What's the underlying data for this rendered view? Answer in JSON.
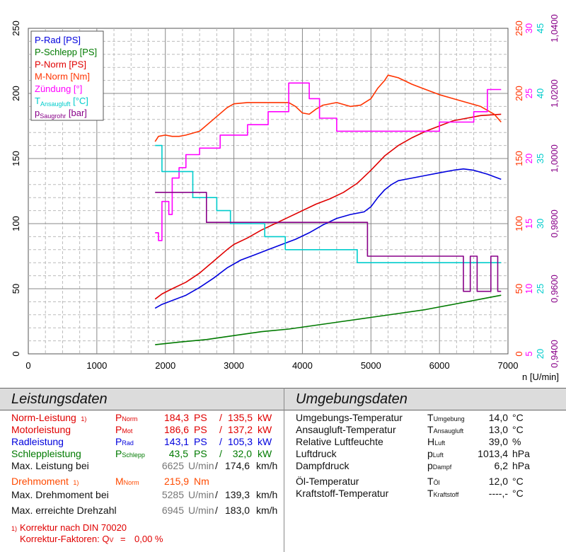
{
  "chart_data": {
    "type": "line",
    "xlabel": "n [U/min]",
    "xlim": [
      0,
      7000
    ],
    "x_ticks": [
      "0",
      "1000",
      "2000",
      "3000",
      "4000",
      "5000",
      "6000",
      "7000"
    ],
    "ylim": [
      0,
      250
    ],
    "y_ticks_left": [
      "0",
      "50",
      "100",
      "150",
      "200",
      "250"
    ],
    "grid": true,
    "legend_position": "top-left",
    "right_axes": [
      {
        "name": "M-Norm [Nm]",
        "color": "#ff3300",
        "ticks": [
          "0",
          "50",
          "100",
          "150",
          "200",
          "250"
        ]
      },
      {
        "name": "Zündung [°]",
        "color": "#ff00ff",
        "ticks": [
          "5",
          "10",
          "15",
          "20",
          "25",
          "30"
        ]
      },
      {
        "name": "TAnsaugluft [°C]",
        "color": "#00cccc",
        "ticks": [
          "20",
          "25",
          "30",
          "35",
          "40",
          "45"
        ]
      },
      {
        "name": "pSaugrohr [bar]",
        "color": "#880088",
        "ticks": [
          "0,9400",
          "0,9600",
          "0,9800",
          "1,0000",
          "1,0200",
          "1,0400"
        ]
      }
    ],
    "series": [
      {
        "name": "P-Rad [PS]",
        "color": "#0000dd",
        "x": [
          1850,
          1950,
          2100,
          2300,
          2500,
          2700,
          2900,
          3100,
          3300,
          3500,
          3700,
          3900,
          4100,
          4300,
          4500,
          4700,
          4900,
          5000,
          5100,
          5200,
          5300,
          5400,
          5600,
          5800,
          6000,
          6200,
          6350,
          6500,
          6700,
          6900
        ],
        "y": [
          35,
          38,
          41,
          45,
          51,
          58,
          66,
          72,
          76,
          80,
          84,
          88,
          93,
          99,
          104,
          107,
          109,
          113,
          120,
          126,
          130,
          133,
          135,
          137,
          139,
          141,
          142,
          141,
          138,
          134
        ]
      },
      {
        "name": "P-Schlepp [PS]",
        "color": "#007a00",
        "x": [
          1850,
          2200,
          2600,
          3000,
          3400,
          3800,
          4200,
          4600,
          5000,
          5400,
          5800,
          6200,
          6600,
          6900
        ],
        "y": [
          7,
          9,
          11,
          14,
          17,
          19,
          22,
          25,
          28,
          31,
          34,
          38,
          42,
          45
        ]
      },
      {
        "name": "P-Norm [PS]",
        "color": "#e00000",
        "x": [
          1850,
          1950,
          2100,
          2300,
          2500,
          2700,
          2900,
          3000,
          3200,
          3400,
          3600,
          3800,
          4000,
          4200,
          4400,
          4600,
          4800,
          5000,
          5200,
          5400,
          5600,
          5800,
          6000,
          6200,
          6400,
          6600,
          6900
        ],
        "y": [
          42,
          46,
          50,
          55,
          62,
          71,
          80,
          84,
          89,
          95,
          100,
          105,
          110,
          115,
          119,
          124,
          131,
          141,
          152,
          160,
          166,
          171,
          175,
          179,
          181,
          183,
          184
        ]
      },
      {
        "name": "M-Norm [Nm]",
        "color": "#ff3300",
        "x": [
          1850,
          1900,
          2000,
          2100,
          2200,
          2300,
          2500,
          2700,
          2900,
          3000,
          3200,
          3400,
          3600,
          3800,
          3900,
          4000,
          4100,
          4200,
          4300,
          4500,
          4700,
          4850,
          5000,
          5100,
          5200,
          5250,
          5400,
          5600,
          5800,
          6000,
          6200,
          6400,
          6600,
          6800,
          6900
        ],
        "y": [
          163,
          167,
          168,
          167,
          167,
          168,
          171,
          180,
          189,
          192,
          193,
          193,
          193,
          193,
          190,
          185,
          184,
          188,
          191,
          193,
          190,
          191,
          196,
          204,
          210,
          214,
          212,
          207,
          203,
          199,
          196,
          193,
          190,
          184,
          178
        ]
      },
      {
        "name": "Zündung [°]",
        "color": "#ff00ff",
        "x": [
          1850,
          1900,
          1900,
          1950,
          1950,
          2050,
          2050,
          2100,
          2100,
          2200,
          2200,
          2300,
          2300,
          2500,
          2500,
          2800,
          2800,
          3200,
          3200,
          3500,
          3500,
          3800,
          3800,
          4100,
          4100,
          4250,
          4250,
          4500,
          4500,
          4850,
          4850,
          6000,
          6000,
          6500,
          6500,
          6700,
          6700,
          6900
        ],
        "y": [
          93,
          93,
          87,
          87,
          117,
          117,
          107,
          107,
          135,
          135,
          143,
          143,
          153,
          153,
          158,
          158,
          168,
          168,
          176,
          176,
          186,
          186,
          208,
          208,
          196,
          196,
          181,
          181,
          171,
          171,
          171,
          171,
          178,
          178,
          186,
          186,
          203,
          203
        ]
      },
      {
        "name": "TAnsaugluft [°C]",
        "color": "#00cccc",
        "x": [
          1850,
          1950,
          1950,
          2400,
          2400,
          2750,
          2750,
          2950,
          2950,
          3450,
          3450,
          3750,
          3750,
          4800,
          4800,
          5800,
          5800,
          6900
        ],
        "y": [
          160,
          160,
          140,
          140,
          120,
          120,
          110,
          110,
          100,
          100,
          90,
          90,
          80,
          80,
          70,
          70,
          70,
          70
        ],
        "drawn_y_shift": 0
      },
      {
        "name": "pSaugrohr [bar]",
        "color": "#880088",
        "x": [
          1850,
          2600,
          2600,
          4950,
          4950,
          6350,
          6350,
          6450,
          6450,
          6550,
          6550,
          6600,
          6600,
          6750,
          6750,
          6850,
          6850,
          6900
        ],
        "y": [
          124,
          124,
          101,
          101,
          75,
          75,
          48,
          48,
          75,
          75,
          48,
          48,
          48,
          48,
          75,
          75,
          48,
          48
        ]
      }
    ]
  },
  "leistungsdaten": {
    "title": "Leistungsdaten",
    "rows": [
      {
        "label": "Norm-Leistung",
        "sup": "1)",
        "sym": "P",
        "sub": "Norm",
        "v1": "184,3",
        "u1": "PS",
        "sep": "/",
        "v2": "135,5",
        "u2": "kW"
      },
      {
        "label": "Motorleistung",
        "sup": "",
        "sym": "P",
        "sub": "Mot",
        "v1": "186,6",
        "u1": "PS",
        "sep": "/",
        "v2": "137,2",
        "u2": "kW"
      },
      {
        "label": "Radleistung",
        "sup": "",
        "sym": "P",
        "sub": "Rad",
        "v1": "143,1",
        "u1": "PS",
        "sep": "/",
        "v2": "105,3",
        "u2": "kW"
      },
      {
        "label": "Schleppleistung",
        "sup": "",
        "sym": "P",
        "sub": "Schlepp",
        "v1": "43,5",
        "u1": "PS",
        "sep": "/",
        "v2": "32,0",
        "u2": "kW"
      }
    ],
    "max_leistung": {
      "label": "Max. Leistung bei",
      "rpm": "6625",
      "rpm_unit": "U/min",
      "sep": "/",
      "speed": "174,6",
      "speed_unit": "km/h"
    },
    "drehmoment": {
      "label": "Drehmoment",
      "sup": "1)",
      "sym": "M",
      "sub": "Norm",
      "value": "215,9",
      "unit": "Nm"
    },
    "max_drehmoment": {
      "label": "Max. Drehmoment bei",
      "rpm": "5285",
      "rpm_unit": "U/min",
      "sep": "/",
      "speed": "139,3",
      "speed_unit": "km/h"
    },
    "max_drehzahl": {
      "label": "Max. erreichte Drehzahl",
      "rpm": "6945",
      "rpm_unit": "U/min",
      "sep": "/",
      "speed": "183,0",
      "speed_unit": "km/h"
    },
    "korrektur": {
      "sup": "1)",
      "text": "Korrektur nach DIN 70020",
      "faktor_label": "Korrektur-Faktoren: Q",
      "faktor_sub": "V",
      "faktor_eq": "=",
      "faktor_value": "0,00 %"
    }
  },
  "umgebungsdaten": {
    "title": "Umgebungsdaten",
    "rows": [
      {
        "label": "Umgebungs-Temperatur",
        "sym": "T",
        "sub": "Umgebung",
        "value": "14,0",
        "unit": "°C"
      },
      {
        "label": "Ansaugluft-Temperatur",
        "sym": "T",
        "sub": "Ansaugluft",
        "value": "13,0",
        "unit": "°C"
      },
      {
        "label": "Relative Luftfeuchte",
        "sym": "H",
        "sub": "Luft",
        "value": "39,0",
        "unit": "%"
      },
      {
        "label": "Luftdruck",
        "sym": "p",
        "sub": "Luft",
        "value": "1013,4",
        "unit": "hPa"
      },
      {
        "label": "Dampfdruck",
        "sym": "p",
        "sub": "Dampf",
        "value": "6,2",
        "unit": "hPa"
      },
      {
        "label": "Öl-Temperatur",
        "sym": "T",
        "sub": "Öl",
        "value": "12,0",
        "unit": "°C"
      },
      {
        "label": "Kraftstoff-Temperatur",
        "sym": "T",
        "sub": "Kraftstoff",
        "value": "----,-",
        "unit": "°C"
      }
    ]
  },
  "legend": [
    {
      "text": "P-Rad [PS]",
      "color": "#0000dd"
    },
    {
      "text": "P-Schlepp [PS]",
      "color": "#007a00"
    },
    {
      "text": "P-Norm [PS]",
      "color": "#e00000"
    },
    {
      "text": "M-Norm [Nm]",
      "color": "#ff3300"
    },
    {
      "text": "Zündung [°]",
      "color": "#ff00ff"
    },
    {
      "sym": "T",
      "sub": "Ansaugluft",
      "rest": " [°C]",
      "color": "#00cccc"
    },
    {
      "sym": "p",
      "sub": "Saugrohr",
      "rest": " [bar]",
      "color": "#880088"
    }
  ]
}
